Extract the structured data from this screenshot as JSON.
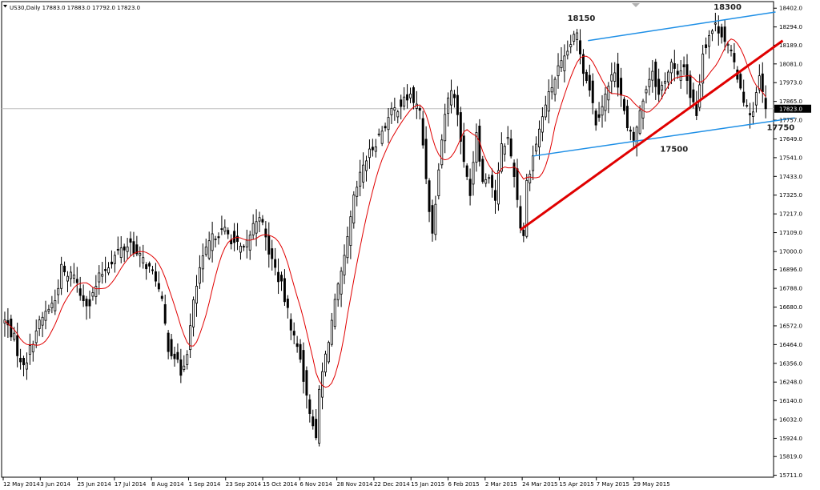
{
  "header": {
    "symbol_line": "US30,Daily  17883.0 17883.0 17792.0 17823.0"
  },
  "colors": {
    "candle": "#000000",
    "moving_average": "#e00000",
    "channel": "#1e8fe6",
    "trendline": "#e00000",
    "price_line": "#c0c0c0",
    "price_tag_bg": "#000000",
    "price_tag_text": "#ffffff"
  },
  "chart_data": {
    "type": "candlestick",
    "ylim": [
      15700,
      18440
    ],
    "y_ticks": [
      18402.0,
      18294.0,
      18189.0,
      18081.0,
      17973.0,
      17865.0,
      17757.0,
      17649.0,
      17541.0,
      17433.0,
      17325.0,
      17217.0,
      17109.0,
      17000.0,
      16896.0,
      16788.0,
      16680.0,
      16572.0,
      16464.0,
      16356.0,
      16248.0,
      16140.0,
      16032.0,
      15924.0,
      15819.0,
      15711.0
    ],
    "y_tick_labels": [
      "18402.0",
      "18294.0",
      "18189.0",
      "18081.0",
      "17973.0",
      "17865.0",
      "17757.0",
      "17649.0",
      "17541.0",
      "17433.0",
      "17325.0",
      "17217.0",
      "17109.0",
      "17000.0",
      "16896.0",
      "16788.0",
      "16680.0",
      "16572.0",
      "16464.0",
      "16356.0",
      "16248.0",
      "16140.0",
      "16032.0",
      "15924.0",
      "15819.0",
      "15711.0"
    ],
    "x_ticks": [
      "12 May 2014",
      "3 Jun 2014",
      "25 Jun 2014",
      "17 Jul 2014",
      "8 Aug 2014",
      "1 Sep 2014",
      "23 Sep 2014",
      "15 Oct 2014",
      "6 Nov 2014",
      "28 Nov 2014",
      "22 Dec 2014",
      "15 Jan 2015",
      "6 Feb 2015",
      "2 Mar 2015",
      "24 Mar 2015",
      "15 Apr 2015",
      "7 May 2015",
      "29 May 2015"
    ],
    "last_price": 17823.0,
    "last_price_label": "17823.0",
    "anchors": [
      [
        0,
        16600
      ],
      [
        3,
        16500
      ],
      [
        5,
        16350
      ],
      [
        7,
        16380
      ],
      [
        10,
        16550
      ],
      [
        13,
        16650
      ],
      [
        16,
        16720
      ],
      [
        18,
        16900
      ],
      [
        20,
        16850
      ],
      [
        22,
        16880
      ],
      [
        24,
        16750
      ],
      [
        27,
        16700
      ],
      [
        30,
        16850
      ],
      [
        32,
        16900
      ],
      [
        34,
        16950
      ],
      [
        36,
        17000
      ],
      [
        38,
        17020
      ],
      [
        40,
        17050
      ],
      [
        42,
        16980
      ],
      [
        44,
        16950
      ],
      [
        46,
        16900
      ],
      [
        48,
        16850
      ],
      [
        50,
        16700
      ],
      [
        52,
        16450
      ],
      [
        54,
        16400
      ],
      [
        56,
        16300
      ],
      [
        58,
        16430
      ],
      [
        60,
        16700
      ],
      [
        62,
        16900
      ],
      [
        65,
        17050
      ],
      [
        67,
        17100
      ],
      [
        70,
        17120
      ],
      [
        73,
        17050
      ],
      [
        76,
        17000
      ],
      [
        79,
        17150
      ],
      [
        81,
        17220
      ],
      [
        84,
        17000
      ],
      [
        86,
        16900
      ],
      [
        88,
        16800
      ],
      [
        90,
        16650
      ],
      [
        92,
        16500
      ],
      [
        94,
        16400
      ],
      [
        96,
        16150
      ],
      [
        98,
        16020
      ],
      [
        99,
        15900
      ],
      [
        100,
        16200
      ],
      [
        102,
        16400
      ],
      [
        105,
        16700
      ],
      [
        108,
        16950
      ],
      [
        111,
        17300
      ],
      [
        114,
        17500
      ],
      [
        117,
        17600
      ],
      [
        120,
        17700
      ],
      [
        123,
        17800
      ],
      [
        126,
        17850
      ],
      [
        129,
        17900
      ],
      [
        132,
        17800
      ],
      [
        135,
        17250
      ],
      [
        136,
        17100
      ],
      [
        138,
        17500
      ],
      [
        140,
        17800
      ],
      [
        142,
        17950
      ],
      [
        144,
        17800
      ],
      [
        146,
        17500
      ],
      [
        148,
        17350
      ],
      [
        150,
        17700
      ],
      [
        152,
        17400
      ],
      [
        154,
        17450
      ],
      [
        156,
        17300
      ],
      [
        158,
        17600
      ],
      [
        160,
        17650
      ],
      [
        162,
        17450
      ],
      [
        164,
        17150
      ],
      [
        165,
        17100
      ],
      [
        166,
        17400
      ],
      [
        168,
        17550
      ],
      [
        170,
        17700
      ],
      [
        172,
        17850
      ],
      [
        174,
        17950
      ],
      [
        176,
        18050
      ],
      [
        178,
        18100
      ],
      [
        180,
        18200
      ],
      [
        182,
        18250
      ],
      [
        184,
        18050
      ],
      [
        186,
        17950
      ],
      [
        188,
        17750
      ],
      [
        190,
        17850
      ],
      [
        192,
        17950
      ],
      [
        194,
        18050
      ],
      [
        196,
        17900
      ],
      [
        198,
        17700
      ],
      [
        200,
        17640
      ],
      [
        202,
        17800
      ],
      [
        204,
        17950
      ],
      [
        206,
        18050
      ],
      [
        208,
        17900
      ],
      [
        210,
        18000
      ],
      [
        212,
        18080
      ],
      [
        214,
        18000
      ],
      [
        216,
        18080
      ],
      [
        218,
        17900
      ],
      [
        220,
        17800
      ],
      [
        222,
        18150
      ],
      [
        224,
        18250
      ],
      [
        226,
        18300
      ],
      [
        228,
        18260
      ],
      [
        230,
        18180
      ],
      [
        232,
        18080
      ],
      [
        234,
        17950
      ],
      [
        236,
        17820
      ],
      [
        238,
        17800
      ],
      [
        240,
        18000
      ],
      [
        242,
        17823
      ]
    ],
    "annotations": [
      {
        "text": "18150"
      },
      {
        "text": "18300"
      },
      {
        "text": "17500"
      },
      {
        "text": "17750"
      }
    ]
  }
}
